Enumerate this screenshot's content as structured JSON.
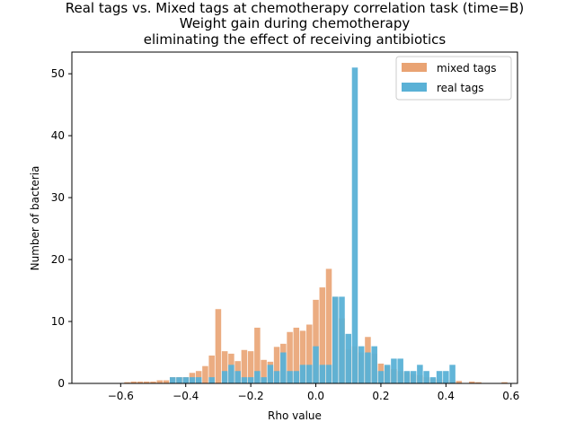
{
  "chart_data": {
    "type": "bar",
    "title_lines": [
      "Real tags vs. Mixed tags at chemotherapy correlation task (time=B)",
      "Weight gain during chemotherapy",
      "eliminating the effect of receiving antibiotics"
    ],
    "xlabel": "Rho value",
    "ylabel": "Number of bacteria",
    "xlim": [
      -0.75,
      0.62
    ],
    "ylim": [
      0,
      53.5
    ],
    "xticks": [
      -0.6,
      -0.4,
      -0.2,
      0.0,
      0.2,
      0.4,
      0.6
    ],
    "xtick_labels": [
      "−0.6",
      "−0.4",
      "−0.2",
      "0.0",
      "0.2",
      "0.4",
      "0.6"
    ],
    "yticks": [
      0,
      10,
      20,
      30,
      40,
      50
    ],
    "ytick_labels": [
      "0",
      "10",
      "20",
      "30",
      "40",
      "50"
    ],
    "legend_position": "upper right",
    "series": [
      {
        "name": "mixed tags",
        "color": "#e9a373",
        "bin_width": 0.02,
        "bins": [
          [
            -0.58,
            0.2
          ],
          [
            -0.56,
            0.3
          ],
          [
            -0.54,
            0.3
          ],
          [
            -0.52,
            0.3
          ],
          [
            -0.5,
            0.3
          ],
          [
            -0.48,
            0.5
          ],
          [
            -0.46,
            0.5
          ],
          [
            -0.44,
            1.0
          ],
          [
            -0.42,
            1.0
          ],
          [
            -0.4,
            1.0
          ],
          [
            -0.38,
            1.7
          ],
          [
            -0.36,
            2.0
          ],
          [
            -0.34,
            2.8
          ],
          [
            -0.32,
            4.5
          ],
          [
            -0.3,
            12.0
          ],
          [
            -0.28,
            5.2
          ],
          [
            -0.26,
            4.8
          ],
          [
            -0.24,
            3.6
          ],
          [
            -0.22,
            5.4
          ],
          [
            -0.2,
            5.2
          ],
          [
            -0.18,
            9.0
          ],
          [
            -0.16,
            3.8
          ],
          [
            -0.14,
            3.5
          ],
          [
            -0.12,
            5.9
          ],
          [
            -0.1,
            6.4
          ],
          [
            -0.08,
            8.3
          ],
          [
            -0.06,
            9.0
          ],
          [
            -0.04,
            8.5
          ],
          [
            -0.02,
            9.5
          ],
          [
            0.0,
            13.5
          ],
          [
            0.02,
            15.5
          ],
          [
            0.04,
            18.5
          ],
          [
            0.06,
            14.0
          ],
          [
            0.08,
            10.5
          ],
          [
            0.1,
            5.5
          ],
          [
            0.12,
            6.0
          ],
          [
            0.14,
            5.0
          ],
          [
            0.16,
            7.5
          ],
          [
            0.18,
            4.8
          ],
          [
            0.2,
            3.2
          ],
          [
            0.22,
            2.8
          ],
          [
            0.24,
            2.3
          ],
          [
            0.26,
            2.0
          ],
          [
            0.28,
            1.8
          ],
          [
            0.3,
            1.5
          ],
          [
            0.32,
            1.3
          ],
          [
            0.34,
            1.0
          ],
          [
            0.36,
            0.8
          ],
          [
            0.38,
            0.6
          ],
          [
            0.4,
            0.5
          ],
          [
            0.42,
            0.5
          ],
          [
            0.44,
            0.4
          ],
          [
            0.48,
            0.3
          ],
          [
            0.5,
            0.2
          ],
          [
            0.58,
            0.2
          ]
        ]
      },
      {
        "name": "real tags",
        "color": "#5ab1d6",
        "bin_width": 0.02,
        "bins": [
          [
            -0.44,
            1
          ],
          [
            -0.42,
            1
          ],
          [
            -0.4,
            1
          ],
          [
            -0.38,
            1
          ],
          [
            -0.36,
            1
          ],
          [
            -0.32,
            1
          ],
          [
            -0.28,
            2
          ],
          [
            -0.26,
            3
          ],
          [
            -0.24,
            2
          ],
          [
            -0.22,
            1
          ],
          [
            -0.2,
            1
          ],
          [
            -0.18,
            2
          ],
          [
            -0.16,
            1
          ],
          [
            -0.14,
            3
          ],
          [
            -0.12,
            2
          ],
          [
            -0.1,
            5
          ],
          [
            -0.08,
            2
          ],
          [
            -0.06,
            2
          ],
          [
            -0.04,
            3
          ],
          [
            -0.02,
            3
          ],
          [
            0.0,
            6
          ],
          [
            0.02,
            3
          ],
          [
            0.04,
            3
          ],
          [
            0.06,
            14
          ],
          [
            0.08,
            14
          ],
          [
            0.1,
            8
          ],
          [
            0.12,
            51
          ],
          [
            0.14,
            6
          ],
          [
            0.16,
            5
          ],
          [
            0.18,
            6
          ],
          [
            0.2,
            2
          ],
          [
            0.22,
            3
          ],
          [
            0.24,
            4
          ],
          [
            0.26,
            4
          ],
          [
            0.28,
            2
          ],
          [
            0.3,
            2
          ],
          [
            0.32,
            3
          ],
          [
            0.34,
            2
          ],
          [
            0.36,
            1
          ],
          [
            0.38,
            2
          ],
          [
            0.4,
            2
          ],
          [
            0.42,
            3
          ]
        ]
      }
    ]
  }
}
